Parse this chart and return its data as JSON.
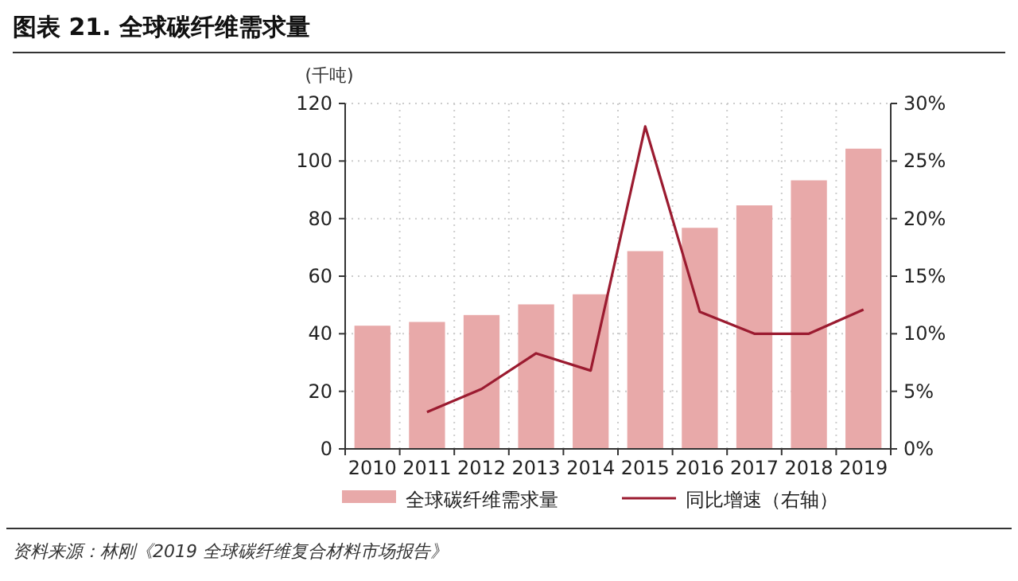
{
  "chart_data": {
    "type": "bar",
    "title": "图表 21. 全球碳纤维需求量",
    "categories": [
      "2010",
      "2011",
      "2012",
      "2013",
      "2014",
      "2015",
      "2016",
      "2017",
      "2018",
      "2019"
    ],
    "series": [
      {
        "name": "全球碳纤维需求量",
        "color": "#e8a9a9",
        "values": [
          42.8,
          44.1,
          46.5,
          50.2,
          53.7,
          68.7,
          76.8,
          84.6,
          93.3,
          104.3
        ]
      },
      {
        "name": "同比增速（右轴）",
        "type": "line",
        "axis": "y2",
        "color": "#9b1b30",
        "values": [
          null,
          3.2,
          5.2,
          8.3,
          6.8,
          28.0,
          11.9,
          10.0,
          10.0,
          12.1
        ]
      }
    ],
    "ylabel": "(千吨)",
    "ylim": [
      0,
      120
    ],
    "yticks": [
      0,
      20,
      40,
      60,
      80,
      100,
      120
    ],
    "y2lim": [
      0,
      30
    ],
    "y2ticks": [
      {
        "value": 0,
        "label": "0%"
      },
      {
        "value": 5,
        "label": "5%"
      },
      {
        "value": 10,
        "label": "10%"
      },
      {
        "value": 15,
        "label": "15%"
      },
      {
        "value": 20,
        "label": "20%"
      },
      {
        "value": 25,
        "label": "25%"
      },
      {
        "value": 30,
        "label": "30%"
      }
    ],
    "grid": true,
    "legend": "bottom",
    "annotations": [
      "资料来源：林刚《2019 全球碳纤维复合材料市场报告》"
    ]
  }
}
